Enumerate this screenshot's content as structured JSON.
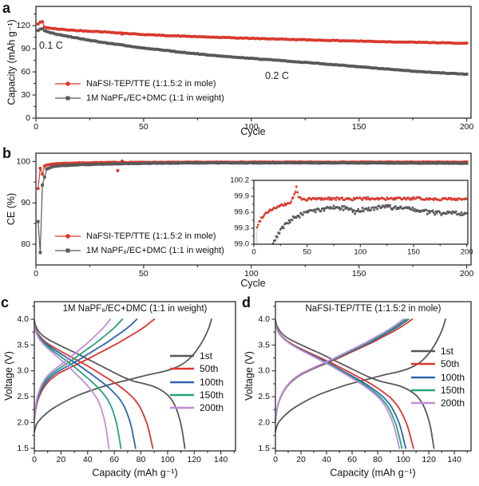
{
  "letters": {
    "a": "a",
    "b": "b",
    "c": "c",
    "d": "d"
  },
  "colors": {
    "red": "#d9382f",
    "gray": "#595959",
    "blue": "#2e66ad",
    "green": "#27a17b",
    "purple": "#c38cd6",
    "frame": "#2b2b2b",
    "background": "#ffffff"
  },
  "profiles": {
    "first_charge": [
      [
        0,
        1.82
      ],
      [
        0.015,
        1.98
      ],
      [
        0.05,
        2.12
      ],
      [
        0.1,
        2.26
      ],
      [
        0.17,
        2.4
      ],
      [
        0.25,
        2.53
      ],
      [
        0.33,
        2.63
      ],
      [
        0.42,
        2.73
      ],
      [
        0.5,
        2.8
      ],
      [
        0.58,
        2.87
      ],
      [
        0.65,
        2.93
      ],
      [
        0.72,
        2.98
      ],
      [
        0.78,
        3.04
      ],
      [
        0.83,
        3.12
      ],
      [
        0.87,
        3.22
      ],
      [
        0.91,
        3.37
      ],
      [
        0.95,
        3.58
      ],
      [
        0.98,
        3.79
      ],
      [
        1,
        4.0
      ]
    ],
    "first_discharge": [
      [
        0,
        3.97
      ],
      [
        0.01,
        3.87
      ],
      [
        0.03,
        3.76
      ],
      [
        0.07,
        3.65
      ],
      [
        0.13,
        3.55
      ],
      [
        0.2,
        3.45
      ],
      [
        0.28,
        3.34
      ],
      [
        0.36,
        3.22
      ],
      [
        0.44,
        3.1
      ],
      [
        0.52,
        2.98
      ],
      [
        0.59,
        2.88
      ],
      [
        0.66,
        2.8
      ],
      [
        0.73,
        2.75
      ],
      [
        0.79,
        2.7
      ],
      [
        0.84,
        2.63
      ],
      [
        0.89,
        2.52
      ],
      [
        0.93,
        2.35
      ],
      [
        0.96,
        2.12
      ],
      [
        0.98,
        1.88
      ],
      [
        1,
        1.5
      ]
    ],
    "charge": [
      [
        0,
        2.05
      ],
      [
        0.015,
        2.3
      ],
      [
        0.04,
        2.5
      ],
      [
        0.08,
        2.68
      ],
      [
        0.13,
        2.82
      ],
      [
        0.19,
        2.93
      ],
      [
        0.26,
        3.02
      ],
      [
        0.34,
        3.11
      ],
      [
        0.43,
        3.21
      ],
      [
        0.52,
        3.32
      ],
      [
        0.61,
        3.43
      ],
      [
        0.7,
        3.54
      ],
      [
        0.78,
        3.65
      ],
      [
        0.86,
        3.76
      ],
      [
        0.93,
        3.87
      ],
      [
        1,
        4.0
      ]
    ],
    "discharge": [
      [
        0,
        3.93
      ],
      [
        0.01,
        3.82
      ],
      [
        0.03,
        3.72
      ],
      [
        0.07,
        3.61
      ],
      [
        0.12,
        3.52
      ],
      [
        0.19,
        3.42
      ],
      [
        0.27,
        3.32
      ],
      [
        0.35,
        3.22
      ],
      [
        0.43,
        3.12
      ],
      [
        0.51,
        3.01
      ],
      [
        0.58,
        2.91
      ],
      [
        0.65,
        2.81
      ],
      [
        0.72,
        2.7
      ],
      [
        0.78,
        2.59
      ],
      [
        0.84,
        2.46
      ],
      [
        0.89,
        2.3
      ],
      [
        0.93,
        2.1
      ],
      [
        0.96,
        1.9
      ],
      [
        1,
        1.5
      ]
    ]
  },
  "chart_data": [
    {
      "id": "a",
      "type": "scatter",
      "xlabel": "Cycle",
      "ylabel": "Capacity (mAh g⁻¹)",
      "xlim": [
        0,
        202
      ],
      "ylim": [
        0,
        145
      ],
      "xticks": [
        0,
        50,
        100,
        150,
        200
      ],
      "yticks": [
        0,
        30,
        60,
        90,
        120
      ],
      "grid": false,
      "legend_position": "inside-left",
      "annotations": [
        {
          "text": "0.1 C",
          "x": 2,
          "y": 92
        },
        {
          "text": "0.2 C",
          "x": 108,
          "y": 52
        }
      ],
      "series": [
        {
          "name": "NaFSI-TEP/TTE (1:1.5:2 in mole)",
          "color": "#d9382f",
          "marker": "circle",
          "noise": 0.35,
          "points": [
            [
              1,
              122
            ],
            [
              2,
              124.5
            ],
            [
              3,
              125
            ],
            [
              4,
              118
            ],
            [
              6,
              117
            ],
            [
              10,
              115.5
            ],
            [
              15,
              114.5
            ],
            [
              20,
              113.5
            ],
            [
              25,
              112.8
            ],
            [
              30,
              112.2
            ],
            [
              35,
              111.3
            ],
            [
              40,
              110.3
            ],
            [
              45,
              109.3
            ],
            [
              50,
              108.5
            ],
            [
              60,
              107.2
            ],
            [
              70,
              106.2
            ],
            [
              80,
              105.2
            ],
            [
              90,
              104.3
            ],
            [
              100,
              103.5
            ],
            [
              110,
              102.8
            ],
            [
              120,
              102
            ],
            [
              130,
              101.3
            ],
            [
              140,
              100.6
            ],
            [
              150,
              100
            ],
            [
              160,
              99.3
            ],
            [
              170,
              98.7
            ],
            [
              180,
              98.2
            ],
            [
              190,
              97.6
            ],
            [
              200,
              97
            ]
          ],
          "outliers": [
            [
              40,
              109
            ]
          ]
        },
        {
          "name": "1M NaPF₆/EC+DMC (1:1 in weight)",
          "color": "#595959",
          "marker": "square",
          "noise": 0.35,
          "points": [
            [
              1,
              113.5
            ],
            [
              2,
              115.5
            ],
            [
              3,
              116
            ],
            [
              4,
              113.5
            ],
            [
              6,
              111.5
            ],
            [
              10,
              108.5
            ],
            [
              15,
              106
            ],
            [
              20,
              103.5
            ],
            [
              25,
              101
            ],
            [
              30,
              98.8
            ],
            [
              35,
              96.8
            ],
            [
              40,
              94.8
            ],
            [
              45,
              92.8
            ],
            [
              50,
              91
            ],
            [
              60,
              87.8
            ],
            [
              70,
              84.8
            ],
            [
              80,
              82
            ],
            [
              90,
              79.6
            ],
            [
              100,
              77.5
            ],
            [
              110,
              75.5
            ],
            [
              120,
              73.3
            ],
            [
              130,
              71.2
            ],
            [
              140,
              69
            ],
            [
              150,
              66.7
            ],
            [
              160,
              64.3
            ],
            [
              170,
              62
            ],
            [
              180,
              60
            ],
            [
              190,
              58.4
            ],
            [
              200,
              57
            ]
          ]
        }
      ]
    },
    {
      "id": "b",
      "type": "scatter",
      "xlabel": "Cycle",
      "ylabel": "CE (%)",
      "xlim": [
        0,
        202
      ],
      "ylim": [
        75,
        102
      ],
      "xticks": [
        0,
        50,
        100,
        150,
        200
      ],
      "yticks": [
        80,
        90,
        100
      ],
      "grid": false,
      "legend_position": "inside-left",
      "series": [
        {
          "name": "NaFSI-TEP/TTE (1:1.5:2 in mole)",
          "color": "#d9382f",
          "marker": "circle",
          "noise": 0.05,
          "points": [
            [
              1,
              93.5
            ],
            [
              2,
              98.4
            ],
            [
              3,
              96.9
            ],
            [
              4,
              98.9
            ],
            [
              5,
              99.15
            ],
            [
              8,
              99.4
            ],
            [
              12,
              99.55
            ],
            [
              20,
              99.65
            ],
            [
              30,
              99.75
            ],
            [
              45,
              99.8
            ],
            [
              60,
              99.82
            ],
            [
              100,
              99.85
            ],
            [
              150,
              99.86
            ],
            [
              200,
              99.85
            ]
          ],
          "outliers": [
            [
              38,
              97.8
            ],
            [
              40,
              100.1
            ]
          ]
        },
        {
          "name": "1M NaPF₆/EC+DMC (1:1 in weight)",
          "color": "#595959",
          "marker": "square",
          "noise": 0.05,
          "points": [
            [
              1,
              85.5
            ],
            [
              2,
              78
            ],
            [
              3,
              94.3
            ],
            [
              4,
              96.2
            ],
            [
              5,
              98.2
            ],
            [
              8,
              98.8
            ],
            [
              12,
              99.0
            ],
            [
              20,
              99.2
            ],
            [
              30,
              99.35
            ],
            [
              45,
              99.5
            ],
            [
              60,
              99.6
            ],
            [
              80,
              99.65
            ],
            [
              120,
              99.67
            ],
            [
              160,
              99.62
            ],
            [
              200,
              99.57
            ]
          ]
        }
      ],
      "inset": {
        "xlim": [
          0,
          201
        ],
        "ylim": [
          99.0,
          100.2
        ],
        "xticks": [
          0,
          50,
          100,
          150,
          200
        ],
        "yticks": [
          99.0,
          99.3,
          99.6,
          99.9,
          100.2
        ],
        "series": [
          {
            "name": "NaFSI-TEP/TTE (1:1.5:2 in mole)",
            "color": "#d9382f",
            "marker": "circle",
            "noise": 0.025,
            "points": [
              [
                2,
                98.8
              ],
              [
                3,
                99.3
              ],
              [
                5,
                99.42
              ],
              [
                8,
                99.52
              ],
              [
                12,
                99.6
              ],
              [
                16,
                99.65
              ],
              [
                20,
                99.68
              ],
              [
                25,
                99.72
              ],
              [
                30,
                99.75
              ],
              [
                34,
                99.78
              ],
              [
                38,
                99.92
              ],
              [
                40,
                100.07
              ],
              [
                42,
                99.88
              ],
              [
                46,
                99.84
              ],
              [
                55,
                99.85
              ],
              [
                70,
                99.86
              ],
              [
                90,
                99.85
              ],
              [
                110,
                99.86
              ],
              [
                130,
                99.85
              ],
              [
                150,
                99.86
              ],
              [
                170,
                99.85
              ],
              [
                200,
                99.85
              ]
            ]
          },
          {
            "name": "1M NaPF₆/EC+DMC (1:1 in weight)",
            "color": "#595959",
            "marker": "square",
            "noise": 0.04,
            "points": [
              [
                15,
                98.7
              ],
              [
                18,
                99.0
              ],
              [
                22,
                99.15
              ],
              [
                26,
                99.28
              ],
              [
                31,
                99.38
              ],
              [
                37,
                99.48
              ],
              [
                44,
                99.55
              ],
              [
                52,
                99.6
              ],
              [
                62,
                99.65
              ],
              [
                72,
                99.68
              ],
              [
                85,
                99.68
              ],
              [
                95,
                99.6
              ],
              [
                105,
                99.67
              ],
              [
                115,
                99.68
              ],
              [
                125,
                99.7
              ],
              [
                135,
                99.67
              ],
              [
                145,
                99.68
              ],
              [
                155,
                99.62
              ],
              [
                165,
                99.6
              ],
              [
                175,
                99.58
              ],
              [
                185,
                99.6
              ],
              [
                200,
                99.57
              ]
            ]
          }
        ]
      }
    },
    {
      "id": "c",
      "type": "line",
      "title": "1M NaPF₆/EC+DMC (1:1 in weight)",
      "xlabel": "Capacity (mAh g⁻¹)",
      "ylabel": "Voltage (V)",
      "xlim": [
        0,
        151
      ],
      "ylim": [
        1.45,
        4.34
      ],
      "xticks": [
        0,
        20,
        40,
        60,
        80,
        100,
        120,
        140
      ],
      "yticks": [
        1.5,
        2.0,
        2.5,
        3.0,
        3.5,
        4.0
      ],
      "grid": false,
      "legend_position": "inside-right",
      "cycles": [
        {
          "name": "1st",
          "color": "#595959",
          "charge_capacity": 133,
          "discharge_capacity": 113,
          "charge_profile": "first_charge",
          "discharge_profile": "first_discharge"
        },
        {
          "name": "50th",
          "color": "#d9382f",
          "charge_capacity": 90,
          "discharge_capacity": 89
        },
        {
          "name": "100th",
          "color": "#2e66ad",
          "charge_capacity": 77,
          "discharge_capacity": 76
        },
        {
          "name": "150th",
          "color": "#27a17b",
          "charge_capacity": 66,
          "discharge_capacity": 65
        },
        {
          "name": "200th",
          "color": "#c38cd6",
          "charge_capacity": 57,
          "discharge_capacity": 56
        }
      ]
    },
    {
      "id": "d",
      "type": "line",
      "title": "NaFSI-TEP/TTE (1:1.5:2 in mole)",
      "xlabel": "Capacity (mAh g⁻¹)",
      "ylabel": "Voltage (V)",
      "xlim": [
        0,
        153
      ],
      "ylim": [
        1.45,
        4.34
      ],
      "xticks": [
        0,
        20,
        40,
        60,
        80,
        100,
        120,
        140
      ],
      "yticks": [
        1.5,
        2.0,
        2.5,
        3.0,
        3.5,
        4.0
      ],
      "grid": false,
      "legend_position": "inside-right",
      "cycles": [
        {
          "name": "1st",
          "color": "#595959",
          "charge_capacity": 133,
          "discharge_capacity": 124,
          "charge_profile": "first_charge",
          "discharge_profile": "first_discharge"
        },
        {
          "name": "50th",
          "color": "#d9382f",
          "charge_capacity": 107,
          "discharge_capacity": 108
        },
        {
          "name": "100th",
          "color": "#2e66ad",
          "charge_capacity": 104,
          "discharge_capacity": 102
        },
        {
          "name": "150th",
          "color": "#27a17b",
          "charge_capacity": 102,
          "discharge_capacity": 99
        },
        {
          "name": "200th",
          "color": "#c38cd6",
          "charge_capacity": 100,
          "discharge_capacity": 97
        }
      ]
    }
  ]
}
